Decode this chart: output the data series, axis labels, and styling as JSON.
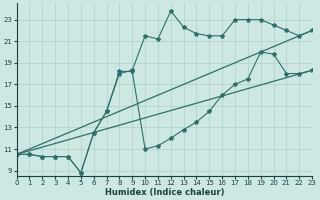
{
  "background_color": "#cde8e2",
  "grid_color": "#afd0ca",
  "line_color": "#2d7068",
  "xlabel": "Humidex (Indice chaleur)",
  "xlim": [
    0,
    23
  ],
  "ylim": [
    8.5,
    24.5
  ],
  "yticks": [
    9,
    11,
    13,
    15,
    17,
    19,
    21,
    23
  ],
  "xticks": [
    0,
    1,
    2,
    3,
    4,
    5,
    6,
    7,
    8,
    9,
    10,
    11,
    12,
    13,
    14,
    15,
    16,
    17,
    18,
    19,
    20,
    21,
    22,
    23
  ],
  "line1_x": [
    0,
    1,
    2,
    3,
    4,
    5,
    6,
    7,
    8,
    9,
    10,
    11,
    12,
    13,
    14,
    15,
    16,
    17,
    18,
    19,
    20,
    21,
    22,
    23
  ],
  "line1_y": [
    10.5,
    10.5,
    10.3,
    10.3,
    10.3,
    8.8,
    12.5,
    14.5,
    18.0,
    18.3,
    21.5,
    21.2,
    23.8,
    22.3,
    21.7,
    21.5,
    21.5,
    23.0,
    23.0,
    23.0,
    22.5,
    22.0,
    21.5,
    22.0
  ],
  "line2_x": [
    0,
    1,
    2,
    3,
    4,
    5,
    6,
    7,
    8,
    9,
    10,
    11,
    12,
    13,
    14,
    15,
    16,
    17,
    18,
    19,
    20,
    21,
    22,
    23
  ],
  "line2_y": [
    10.5,
    10.5,
    10.3,
    10.3,
    10.3,
    8.8,
    12.5,
    14.5,
    18.2,
    18.2,
    11.0,
    11.3,
    12.0,
    12.8,
    13.5,
    14.5,
    16.0,
    17.0,
    17.5,
    20.0,
    19.8,
    18.0,
    18.0,
    18.3
  ],
  "line3_x": [
    0,
    23
  ],
  "line3_y": [
    10.5,
    22.0
  ],
  "line4_x": [
    0,
    23
  ],
  "line4_y": [
    10.5,
    18.3
  ]
}
